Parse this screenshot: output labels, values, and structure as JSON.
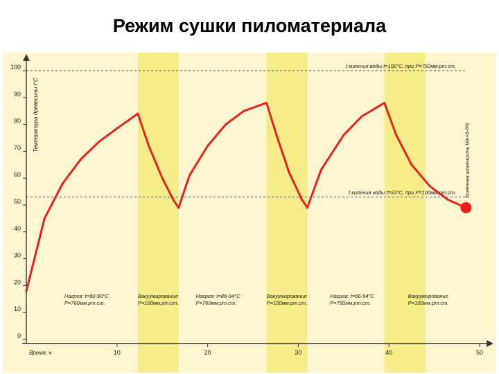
{
  "slide": {
    "title": "Режим сушки пиломатериала"
  },
  "colors": {
    "background": "#fdf6d0",
    "band": "#f7ec8a",
    "curve": "#e0251c",
    "endpoint": "#e8201a",
    "axis": "#333333",
    "guide": "#555555"
  },
  "chart_data": {
    "type": "line",
    "title": "Режим сушки пиломатериала",
    "xlabel": "Время, ч",
    "ylabel": "Температура древесины t°С",
    "xlim": [
      0,
      50
    ],
    "ylim": [
      0,
      100
    ],
    "x_ticks": [
      10,
      20,
      30,
      40,
      50
    ],
    "y_ticks": [
      0,
      10,
      20,
      30,
      40,
      50,
      60,
      70,
      80,
      90,
      100
    ],
    "grid": false,
    "shaded_intervals": [
      [
        12.3,
        16.8
      ],
      [
        26.5,
        31.0
      ],
      [
        39.5,
        44.0
      ]
    ],
    "reference_lines": [
      {
        "y": 100,
        "label": "t кипения воды t=100°С, при P=760мм.рт.ст."
      },
      {
        "y": 53,
        "label": "t кипения воды t=53°С, при P=100мм.рт.ст."
      }
    ],
    "series": [
      {
        "x": [
          0,
          2,
          4,
          6,
          8,
          10,
          12.3,
          13.5,
          15,
          16.2,
          16.8,
          18,
          20,
          22,
          24,
          26.5,
          27.6,
          29,
          30.4,
          31.0,
          32.5,
          35,
          37,
          39.5,
          40.8,
          42.5,
          44.5,
          46.5,
          48.5
        ],
        "y": [
          18,
          45,
          58,
          67,
          73.5,
          78.5,
          84,
          72,
          60,
          52,
          49,
          61,
          72,
          80,
          85,
          88,
          76,
          62,
          52,
          49,
          63,
          76,
          83,
          88,
          76,
          65,
          57,
          52,
          49
        ]
      }
    ],
    "endpoint": {
      "x": 48.5,
      "y": 49,
      "label": "Конечная влажность Wк=6-8%"
    },
    "annotations": [
      {
        "x": 4.2,
        "lines": [
          "Нагрев: t=80-90°С",
          "P=760мм.рт.ст."
        ]
      },
      {
        "x": 12.3,
        "lines": [
          "Вакуумирование",
          "P=100мм.рт.ст."
        ]
      },
      {
        "x": 18.7,
        "lines": [
          "Нагрев: t=86-94°С",
          "P=760мм.рт.ст."
        ]
      },
      {
        "x": 26.5,
        "lines": [
          "Вакуумирование",
          "P=100мм.рт.ст."
        ]
      },
      {
        "x": 33.5,
        "lines": [
          "Нагрев: t=86-94°С",
          "P=760мм.рт.ст."
        ]
      },
      {
        "x": 42.1,
        "lines": [
          "Вакуумирование",
          "P=100мм.рт.ст."
        ]
      }
    ]
  }
}
